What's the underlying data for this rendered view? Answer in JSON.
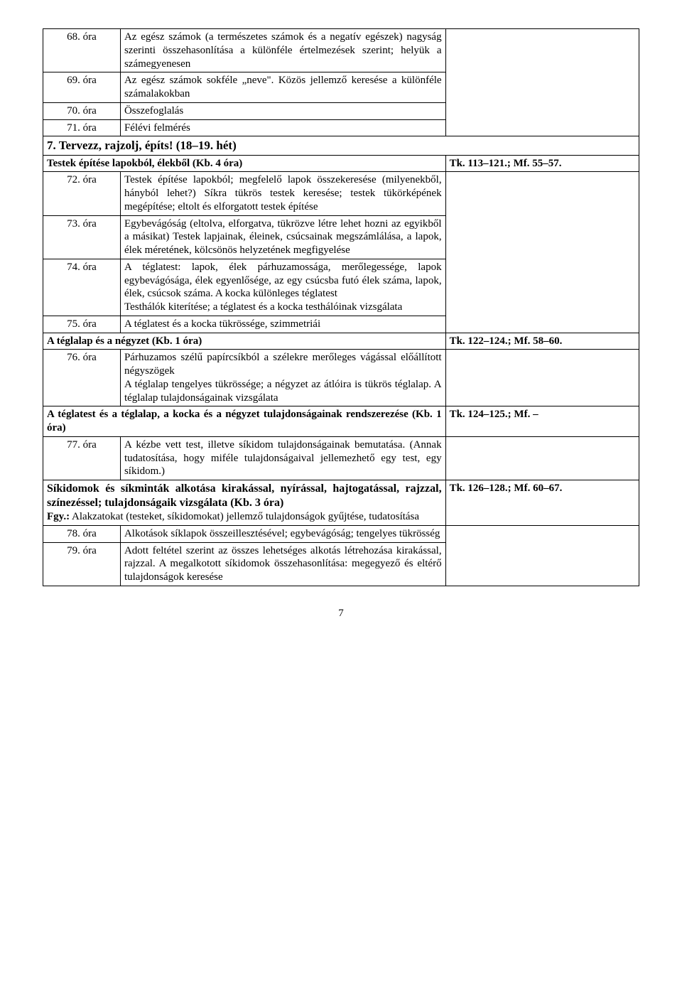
{
  "rows": {
    "r68_label": "68. óra",
    "r68_desc": "Az egész számok (a természetes számok és a negatív egészek) nagyság szerinti összehasonlítása a különféle értelmezések szerint; helyük a számegyenesen",
    "r69_label": "69. óra",
    "r69_desc": "Az egész számok sokféle „neve\". Közös jellemző keresése a különféle számalakokban",
    "r70_label": "70. óra",
    "r70_desc": "Összefoglalás",
    "r71_label": "71. óra",
    "r71_desc": "Félévi felmérés",
    "sect7": "7. Tervezz, rajzolj, építs! (18–19. hét)",
    "sub1": "Testek építése lapokból, élekből (Kb. 4 óra)",
    "sub1_ref": "Tk. 113–121.; Mf. 55–57.",
    "r72_label": "72. óra",
    "r72_desc": "Testek építése lapokból; megfelelő lapok összekeresése (milyenekből, hányból lehet?) Síkra tükrös testek keresése; testek tükörképének megépítése; eltolt és elforgatott testek építése",
    "r73_label": "73. óra",
    "r73_desc": "Egybevágóság (eltolva, elforgatva, tükrözve létre lehet hozni az egyikből a másikat) Testek lapjainak, éleinek, csúcsainak megszámlálása, a lapok, élek méretének, kölcsönös helyzetének megfigyelése",
    "r74_label": "74. óra",
    "r74_desc": "A téglatest: lapok, élek párhuzamossága, merőlegessége, lapok egybevágósága, élek egyenlősége, az egy csúcsba futó élek száma, lapok, élek, csúcsok száma. A kocka különleges téglatest\nTesthálók kiterítése; a téglatest és a kocka testhálóinak vizsgálata",
    "r75_label": "75. óra",
    "r75_desc": "A téglatest és a kocka tükrössége, szimmetriái",
    "sub2": "A téglalap és a négyzet (Kb. 1 óra)",
    "sub2_ref": "Tk. 122–124.; Mf. 58–60.",
    "r76_label": "76. óra",
    "r76_desc": "Párhuzamos szélű papírcsíkból a szélekre merőleges vágással előállított négyszögek\nA téglalap tengelyes tükrössége; a négyzet az átlóira is tükrös téglalap. A téglalap tulajdonságainak vizsgálata",
    "sub3": "A téglatest és a téglalap, a kocka és a négyzet tulajdonságainak rendszerezése (Kb. 1 óra)",
    "sub3_ref": "Tk. 124–125.; Mf. –",
    "r77_label": "77. óra",
    "r77_desc": "A kézbe vett test, illetve síkidom tulajdonságainak bemutatása. (Annak tudatosítása, hogy miféle tulajdonságaival jellemezhető egy test, egy síkidom.)",
    "sub4a": "Síkidomok és síkminták alkotása kirakással, nyírással, hajtogatással, rajzzal, színezéssel; tulajdonságaik vizsgálata (Kb. 3 óra)",
    "sub4b_prefix": "Fgy.:",
    "sub4b": " Alakzatokat (testeket, síkidomokat) jellemző tulajdonságok gyűjtése, tudatosítása",
    "sub4_ref": "Tk. 126–128.; Mf. 60–67.",
    "r78_label": "78. óra",
    "r78_desc": "Alkotások síklapok összeillesztésével; egybevágóság; tengelyes tükrösség",
    "r79_label": "79. óra",
    "r79_desc": "Adott feltétel szerint az összes lehetséges alkotás létrehozása kirakással, rajzzal. A megalkotott síkidomok összehasonlítása: megegyező és eltérő tulajdonságok keresése"
  },
  "page_number": "7"
}
